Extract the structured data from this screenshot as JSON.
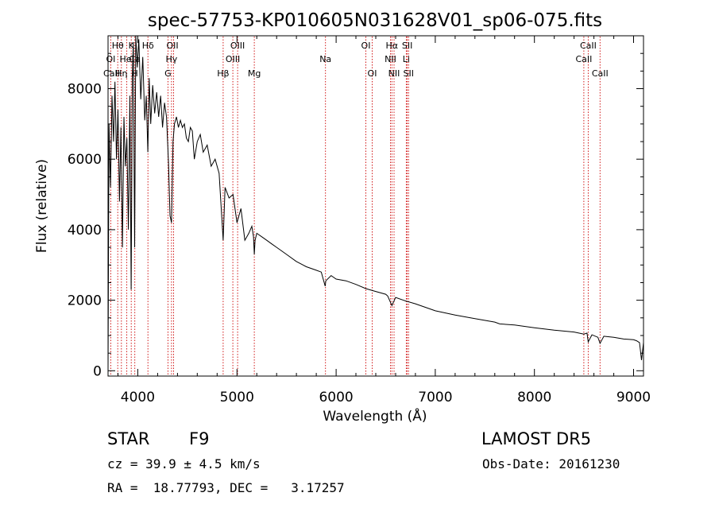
{
  "chart_data": {
    "type": "line",
    "title": "spec-57753-KP010605N031628V01_sp06-075.fits",
    "xlabel": "Wavelength (Å)",
    "ylabel": "Flux (relative)",
    "xlim": [
      3700,
      9100
    ],
    "ylim": [
      -150,
      9500
    ],
    "xticks": [
      4000,
      5000,
      6000,
      7000,
      8000,
      9000
    ],
    "yticks": [
      0,
      2000,
      4000,
      6000,
      8000
    ],
    "xtick_labels": [
      "4000",
      "5000",
      "6000",
      "7000",
      "8000",
      "9000"
    ],
    "ytick_labels": [
      "0",
      "2000",
      "4000",
      "6000",
      "8000"
    ],
    "grid": false,
    "series": [
      {
        "x": [
          3700,
          3710,
          3725,
          3740,
          3755,
          3770,
          3785,
          3800,
          3815,
          3830,
          3845,
          3860,
          3875,
          3890,
          3905,
          3920,
          3933,
          3945,
          3955,
          3968,
          3980,
          3995,
          4010,
          4030,
          4050,
          4070,
          4085,
          4101,
          4115,
          4130,
          4150,
          4170,
          4190,
          4210,
          4230,
          4250,
          4270,
          4290,
          4310,
          4325,
          4340,
          4355,
          4370,
          4390,
          4410,
          4430,
          4450,
          4470,
          4490,
          4510,
          4530,
          4550,
          4570,
          4600,
          4630,
          4660,
          4700,
          4740,
          4780,
          4820,
          4861,
          4880,
          4920,
          4960,
          5000,
          5040,
          5080,
          5120,
          5150,
          5167,
          5175,
          5183,
          5200,
          5250,
          5300,
          5350,
          5400,
          5450,
          5500,
          5600,
          5700,
          5800,
          5850,
          5890,
          5896,
          5950,
          6000,
          6100,
          6200,
          6300,
          6400,
          6500,
          6520,
          6563,
          6600,
          6700,
          6800,
          6900,
          7000,
          7200,
          7400,
          7600,
          7650,
          7800,
          8000,
          8200,
          8400,
          8498,
          8530,
          8542,
          8580,
          8640,
          8662,
          8700,
          8800,
          8900,
          9000,
          9030,
          9060,
          9080,
          9100
        ],
        "values": [
          0,
          7000,
          5200,
          7800,
          6500,
          8200,
          6000,
          7400,
          4800,
          6900,
          3500,
          7200,
          5800,
          6600,
          4000,
          7800,
          2300,
          8400,
          9300,
          3500,
          9500,
          8600,
          9400,
          7700,
          8900,
          7100,
          7800,
          6200,
          8300,
          7000,
          8100,
          7300,
          7900,
          7200,
          7800,
          6900,
          7600,
          7200,
          5900,
          4400,
          4200,
          6500,
          7000,
          7200,
          6900,
          7100,
          6900,
          7000,
          6600,
          6500,
          6900,
          6800,
          6000,
          6500,
          6700,
          6200,
          6400,
          5800,
          6000,
          5600,
          3700,
          5200,
          4900,
          5000,
          4200,
          4600,
          3700,
          3900,
          4100,
          3800,
          3300,
          3700,
          3900,
          3800,
          3700,
          3600,
          3500,
          3400,
          3300,
          3100,
          2950,
          2850,
          2800,
          2400,
          2550,
          2700,
          2600,
          2550,
          2450,
          2330,
          2250,
          2170,
          2120,
          1850,
          2080,
          1980,
          1900,
          1800,
          1700,
          1580,
          1480,
          1380,
          1330,
          1300,
          1220,
          1150,
          1100,
          1040,
          1070,
          820,
          1020,
          950,
          780,
          980,
          950,
          900,
          880,
          850,
          800,
          300,
          800
        ]
      }
    ],
    "line_labels": [
      {
        "name": "Hθ",
        "x": 3798,
        "row": 0
      },
      {
        "name": "K",
        "x": 3934,
        "row": 0
      },
      {
        "name": "Hδ",
        "x": 4102,
        "row": 0
      },
      {
        "name": "OII",
        "x": 4350,
        "row": 0
      },
      {
        "name": "OIII",
        "x": 5007,
        "row": 0
      },
      {
        "name": "OI",
        "x": 6300,
        "row": 0
      },
      {
        "name": "Hα",
        "x": 6563,
        "row": 0
      },
      {
        "name": "SII",
        "x": 6717,
        "row": 0
      },
      {
        "name": "CaII",
        "x": 8542,
        "row": 0
      },
      {
        "name": "OI",
        "x": 3727,
        "row": 1
      },
      {
        "name": "HeI",
        "x": 3889,
        "row": 1
      },
      {
        "name": "Ca",
        "x": 3968,
        "row": 1
      },
      {
        "name": "Hγ",
        "x": 4340,
        "row": 1
      },
      {
        "name": "OIII",
        "x": 4959,
        "row": 1
      },
      {
        "name": "Na",
        "x": 5893,
        "row": 1
      },
      {
        "name": "NII",
        "x": 6548,
        "row": 1
      },
      {
        "name": "Li",
        "x": 6708,
        "row": 1
      },
      {
        "name": "CaII",
        "x": 8498,
        "row": 1
      },
      {
        "name": "CaII",
        "x": 3736,
        "row": 2
      },
      {
        "name": "Hη",
        "x": 3835,
        "row": 2
      },
      {
        "name": "H",
        "x": 3970,
        "row": 2
      },
      {
        "name": "G",
        "x": 4304,
        "row": 2
      },
      {
        "name": "Hβ",
        "x": 4861,
        "row": 2
      },
      {
        "name": "Mg",
        "x": 5175,
        "row": 2
      },
      {
        "name": "OI",
        "x": 6364,
        "row": 2
      },
      {
        "name": "NII",
        "x": 6584,
        "row": 2
      },
      {
        "name": "SII",
        "x": 6731,
        "row": 2
      },
      {
        "name": "CaII",
        "x": 8662,
        "row": 2
      }
    ],
    "line_color": "#cc0000",
    "marker_lines": [
      3727,
      3798,
      3835,
      3889,
      3934,
      3970,
      4102,
      4304,
      4340,
      4361,
      4861,
      4959,
      5007,
      5175,
      5893,
      6300,
      6364,
      6548,
      6563,
      6584,
      6708,
      6717,
      6731,
      8498,
      8542,
      8662
    ]
  },
  "info": {
    "class_label": "STAR",
    "subclass": "F9",
    "survey": "LAMOST DR5",
    "redshift_line": "cz = 39.9 ± 4.5 km/s",
    "obs_date": "Obs-Date: 20161230",
    "coords": "RA =  18.77793, DEC =   3.17257"
  }
}
